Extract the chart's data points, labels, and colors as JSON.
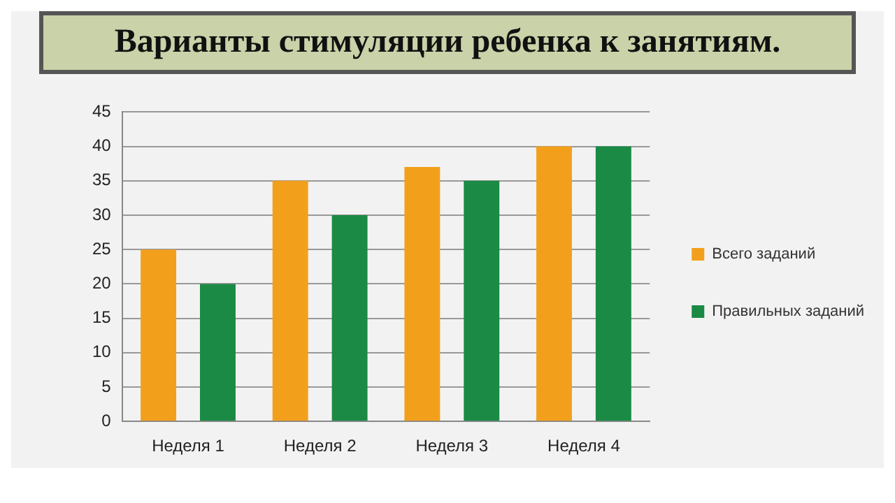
{
  "chart_data": {
    "type": "bar",
    "title": "Варианты стимуляции ребенка к занятиям.",
    "categories": [
      "Неделя 1",
      "Неделя 2",
      "Неделя 3",
      "Неделя 4"
    ],
    "series": [
      {
        "name": "Всего заданий",
        "color": "#f2a01c",
        "values": [
          25,
          35,
          37,
          40
        ]
      },
      {
        "name": "Правильных заданий",
        "color": "#1a8a45",
        "values": [
          20,
          30,
          35,
          40
        ]
      }
    ],
    "ylim": [
      0,
      45
    ],
    "yticks": [
      0,
      5,
      10,
      15,
      20,
      25,
      30,
      35,
      40,
      45
    ],
    "grid": "y",
    "legend": "right"
  }
}
